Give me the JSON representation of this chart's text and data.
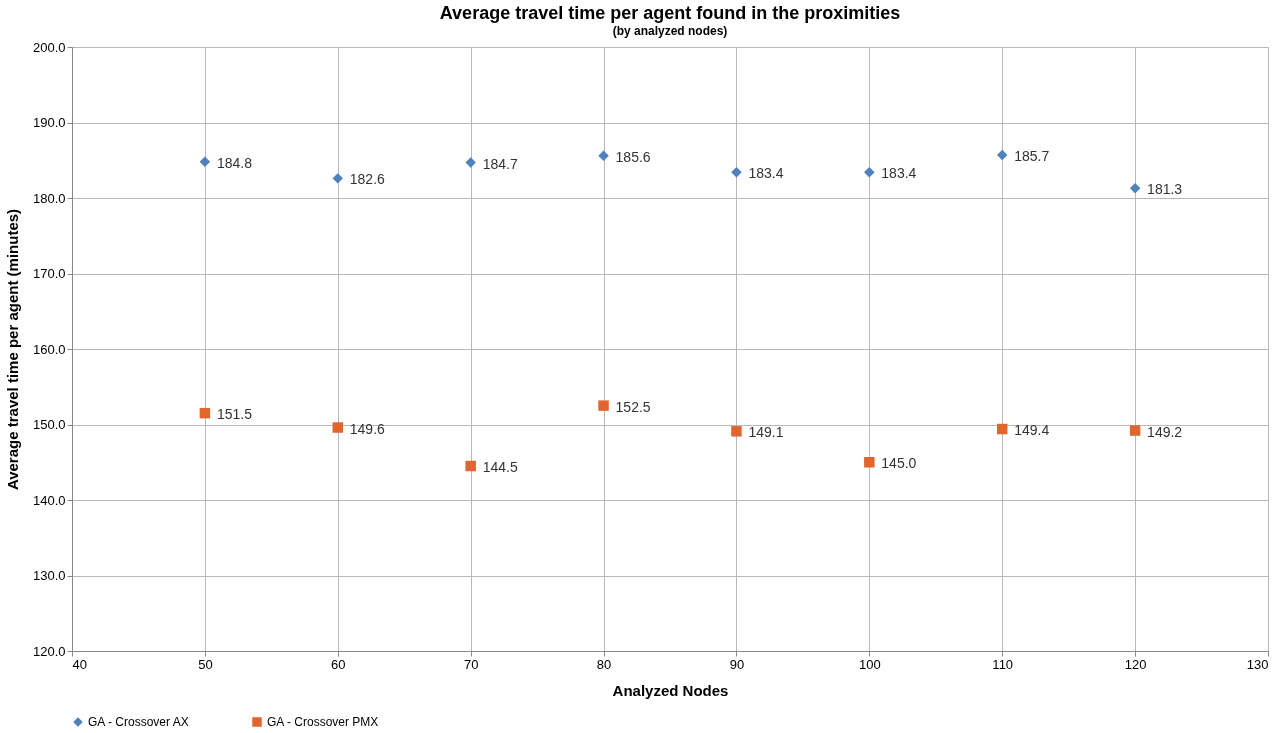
{
  "chart_data": {
    "type": "scatter",
    "title": "Average travel time per agent found in the proximities",
    "subtitle": "(by analyzed nodes)",
    "xlabel": "Analyzed Nodes",
    "ylabel": "Average travel time per agent (minutes)",
    "x": [
      50,
      60,
      70,
      80,
      90,
      100,
      110,
      120
    ],
    "series": [
      {
        "name": "GA - Crossover AX",
        "color": "#4f81bd",
        "marker": "diamond",
        "values": [
          184.8,
          182.6,
          184.7,
          185.6,
          183.4,
          183.4,
          185.7,
          181.3
        ],
        "value_labels": [
          "184.8",
          "182.6",
          "184.7",
          "185.6",
          "183.4",
          "183.4",
          "185.7",
          "181.3"
        ]
      },
      {
        "name": "GA - Crossover PMX",
        "color": "#e0652e",
        "marker": "square",
        "values": [
          151.5,
          149.6,
          144.5,
          152.5,
          149.1,
          145.0,
          149.4,
          149.2
        ],
        "value_labels": [
          "151.5",
          "149.6",
          "144.5",
          "152.5",
          "149.1",
          "145.0",
          "149.4",
          "149.2"
        ]
      }
    ],
    "xlim": [
      40,
      130
    ],
    "xticks": [
      40,
      50,
      60,
      70,
      80,
      90,
      100,
      110,
      120,
      130
    ],
    "ylim": [
      120,
      200
    ],
    "yticks": [
      {
        "value": 120,
        "label": "120.0"
      },
      {
        "value": 130,
        "label": "130.0"
      },
      {
        "value": 140,
        "label": "140.0"
      },
      {
        "value": 150,
        "label": "150.0"
      },
      {
        "value": 160,
        "label": "160.0"
      },
      {
        "value": 170,
        "label": "170.0"
      },
      {
        "value": 180,
        "label": "180.0"
      },
      {
        "value": 190,
        "label": "190.0"
      },
      {
        "value": 200,
        "label": "200.0"
      }
    ],
    "grid": true,
    "legend": "bottom"
  }
}
